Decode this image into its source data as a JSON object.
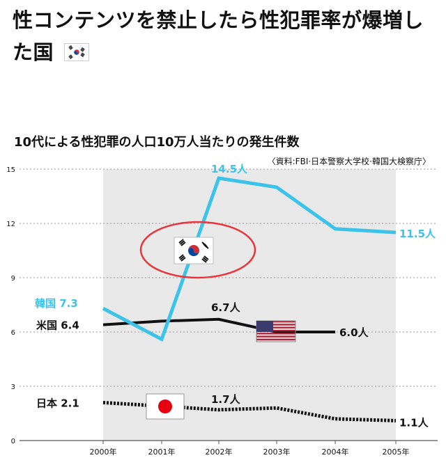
{
  "post": {
    "title_line1": "性コンテンツを禁止したら性犯罪率が爆増し",
    "title_line2": "た国",
    "title_flag_icon": "south-korea-flag-icon"
  },
  "chart_data": {
    "type": "line",
    "title": "10代による性犯罪の人口10万人当たりの発生件数",
    "source": "〈資料:FBI·日本警察大学校·韓国大検察庁〉",
    "categories": [
      "2000年",
      "2001年",
      "2002年",
      "2003年",
      "2004年",
      "2005年"
    ],
    "y_ticks": [
      0,
      3,
      6,
      9,
      12,
      15
    ],
    "ylim": [
      0,
      15
    ],
    "grid": "dotted horizontal",
    "series": [
      {
        "name": "韓国",
        "color": "#3cc3ea",
        "style": "solid",
        "values": [
          7.3,
          5.6,
          14.5,
          14.0,
          11.7,
          11.5
        ],
        "start_label": "韓国 7.3",
        "peak_label": "14.5人",
        "end_label": "11.5人"
      },
      {
        "name": "米国",
        "color": "#111111",
        "style": "solid",
        "values": [
          6.4,
          6.6,
          6.7,
          6.0,
          6.0,
          null
        ],
        "start_label": "米国 6.4",
        "peak_label": "6.7人",
        "end_label": "6.0人"
      },
      {
        "name": "日本",
        "color": "#111111",
        "style": "dotted",
        "values": [
          2.1,
          1.9,
          1.7,
          1.8,
          1.2,
          1.1
        ],
        "start_label": "日本 2.1",
        "peak_label": "1.7人",
        "end_label": "1.1人"
      }
    ],
    "flag_icons": [
      "south-korea-flag-icon",
      "us-flag-icon",
      "japan-flag-icon"
    ],
    "highlight": {
      "shape": "ellipse",
      "color": "#e8343a",
      "target": "south-korea-flag"
    }
  }
}
